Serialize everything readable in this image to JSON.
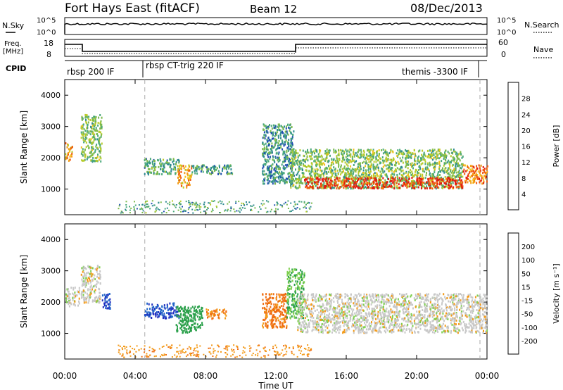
{
  "header": {
    "title": "Fort Hays East (fitACF)",
    "beam": "Beam 12",
    "date": "08/Dec/2013"
  },
  "top_panels": {
    "nsky_label": "N.Sky",
    "nsearch_label": "N.Search",
    "noise_ticks": [
      "10^5",
      "10^0"
    ],
    "freq_label_1": "Freq.",
    "freq_label_2": "[MHz]",
    "freq_ticks": [
      "18",
      "8"
    ],
    "nave_label": "Nave",
    "nave_ticks": [
      "60",
      "0"
    ],
    "cpid_label": "CPID",
    "cpid_segments": [
      "rbsp 200 IF",
      "rbsp CT-trig 220 IF",
      "themis -3300 IF"
    ]
  },
  "chart_data": [
    {
      "type": "heatmap",
      "title": "",
      "xlabel": "Time UT",
      "ylabel": "Slant Range [km]",
      "x_ticks": [
        "00:00",
        "04:00",
        "08:00",
        "12:00",
        "16:00",
        "20:00",
        "00:00"
      ],
      "xlim_hours": [
        0,
        24
      ],
      "ylim_km": [
        180,
        4500
      ],
      "y_ticks": [
        1000,
        2000,
        3000,
        4000
      ],
      "colorbar": {
        "label": "Power [dB]",
        "ticks": [
          4,
          8,
          12,
          16,
          20,
          24,
          28
        ],
        "colors": [
          "#1a10e6",
          "#1f4fb0",
          "#2f8a92",
          "#4aa87b",
          "#7dbb4c",
          "#b7cb2a",
          "#f2c01a",
          "#f59a12",
          "#ef5a10",
          "#e21a10"
        ]
      },
      "echo_regions": [
        {
          "t0": 0.0,
          "t1": 0.4,
          "r0": 1900,
          "r1": 2500,
          "level": 0.7
        },
        {
          "t0": 0.9,
          "t1": 2.1,
          "r0": 1900,
          "r1": 3400,
          "level": 0.45
        },
        {
          "t0": 4.5,
          "t1": 6.5,
          "r0": 1500,
          "r1": 2000,
          "level": 0.35
        },
        {
          "t0": 6.4,
          "t1": 7.2,
          "r0": 1050,
          "r1": 1800,
          "level": 0.7
        },
        {
          "t0": 7.2,
          "t1": 9.5,
          "r0": 1500,
          "r1": 1800,
          "level": 0.3
        },
        {
          "t0": 11.2,
          "t1": 13.0,
          "r0": 1200,
          "r1": 3100,
          "level": 0.3
        },
        {
          "t0": 12.8,
          "t1": 22.6,
          "r0": 1050,
          "r1": 2300,
          "level": 0.45
        },
        {
          "t0": 13.6,
          "t1": 22.6,
          "r0": 1050,
          "r1": 1400,
          "level": 0.95
        },
        {
          "t0": 22.6,
          "t1": 24.0,
          "r0": 1200,
          "r1": 1800,
          "level": 0.8
        }
      ]
    },
    {
      "type": "heatmap",
      "title": "",
      "xlabel": "Time UT",
      "ylabel": "Slant Range [km]",
      "x_ticks": [
        "00:00",
        "04:00",
        "08:00",
        "12:00",
        "16:00",
        "20:00",
        "00:00"
      ],
      "xlim_hours": [
        0,
        24
      ],
      "ylim_km": [
        180,
        4500
      ],
      "y_ticks": [
        1000,
        2000,
        3000,
        4000
      ],
      "colorbar": {
        "label": "Velocity [m s⁻¹]",
        "ticks": [
          200,
          100,
          50,
          15,
          -15,
          -50,
          -100,
          -200
        ],
        "colors": [
          "#1f2fc0",
          "#2266c8",
          "#2aa04a",
          "#7fd04f",
          "#c8c8c8",
          "#f39a17",
          "#ef6d12",
          "#e52a10",
          "#e01a10"
        ]
      },
      "echo_regions": [
        {
          "t0": 0.0,
          "t1": 0.8,
          "r0": 1900,
          "r1": 2500,
          "velocity": 0
        },
        {
          "t0": 0.9,
          "t1": 2.0,
          "r0": 2000,
          "r1": 3200,
          "velocity": 0
        },
        {
          "t0": 2.1,
          "t1": 2.6,
          "r0": 1800,
          "r1": 2300,
          "velocity": 200
        },
        {
          "t0": 4.5,
          "t1": 6.5,
          "r0": 1500,
          "r1": 2000,
          "velocity": 200
        },
        {
          "t0": 6.3,
          "t1": 7.8,
          "r0": 1050,
          "r1": 1900,
          "velocity": 80
        },
        {
          "t0": 8.0,
          "t1": 9.2,
          "r0": 1500,
          "r1": 1800,
          "velocity": -50
        },
        {
          "t0": 11.2,
          "t1": 12.6,
          "r0": 1200,
          "r1": 2300,
          "velocity": -60
        },
        {
          "t0": 12.6,
          "t1": 13.6,
          "r0": 1500,
          "r1": 3100,
          "velocity": 50
        },
        {
          "t0": 13.2,
          "t1": 24.0,
          "r0": 1050,
          "r1": 2300,
          "velocity": 0
        }
      ]
    }
  ]
}
